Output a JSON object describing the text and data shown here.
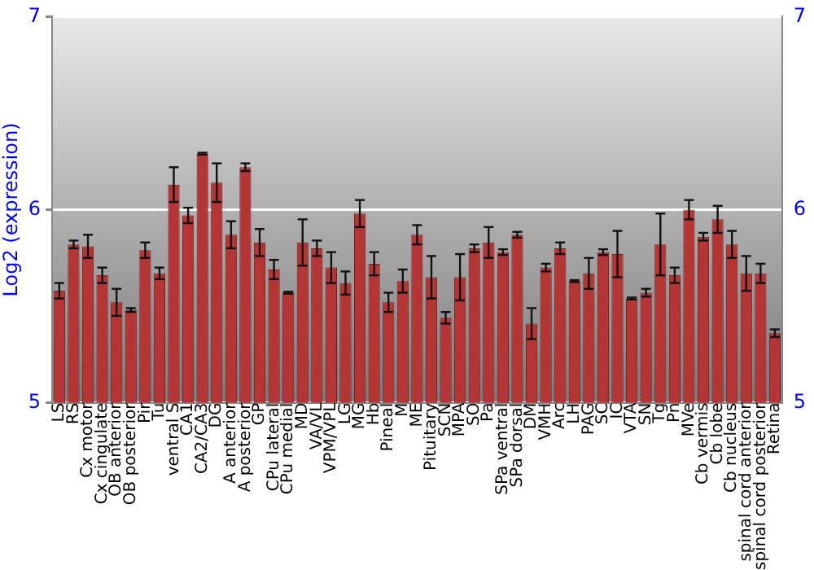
{
  "chart_data": {
    "type": "bar",
    "ylabel": "Log2 (expression)",
    "categories": [
      "LS",
      "RS",
      "Cx motor",
      "Cx cingulate",
      "OB anterior",
      "OB posterior",
      "Pir",
      "Tu",
      "ventral S",
      "CA1",
      "CA2/CA3",
      "DG",
      "A anterior",
      "A posterior",
      "GP",
      "CPu lateral",
      "CPu medial",
      "MD",
      "VA/VL",
      "VPM/VPL",
      "LG",
      "MG",
      "Hb",
      "Pineal",
      "M",
      "ME",
      "Pituitary",
      "SCN",
      "MPA",
      "SO",
      "Pa",
      "SPa ventral",
      "SPa dorsal",
      "DM",
      "VMH",
      "Arc",
      "LH",
      "PAG",
      "SC",
      "IC",
      "VTA",
      "SN",
      "Tg",
      "Pn",
      "MVe",
      "Cb vermis",
      "Cb lobe",
      "Cb nucleus",
      "spinal cord anterior",
      "spinal cord posterior",
      "Retina"
    ],
    "values": [
      5.58,
      5.82,
      5.81,
      5.66,
      5.52,
      5.48,
      5.79,
      5.67,
      6.13,
      5.97,
      6.29,
      6.14,
      5.87,
      6.22,
      5.83,
      5.69,
      5.57,
      5.83,
      5.8,
      5.7,
      5.62,
      5.98,
      5.72,
      5.52,
      5.63,
      5.87,
      5.65,
      5.44,
      5.65,
      5.8,
      5.83,
      5.78,
      5.87,
      5.41,
      5.7,
      5.8,
      5.63,
      5.67,
      5.78,
      5.77,
      5.54,
      5.57,
      5.82,
      5.66,
      6.0,
      5.86,
      5.95,
      5.82,
      5.67,
      5.67,
      5.36
    ],
    "errors": [
      0.04,
      0.02,
      0.06,
      0.04,
      0.07,
      0.01,
      0.04,
      0.03,
      0.09,
      0.04,
      0.005,
      0.1,
      0.07,
      0.02,
      0.07,
      0.05,
      0.005,
      0.12,
      0.04,
      0.08,
      0.06,
      0.07,
      0.06,
      0.05,
      0.06,
      0.05,
      0.11,
      0.03,
      0.12,
      0.02,
      0.08,
      0.015,
      0.015,
      0.08,
      0.02,
      0.03,
      0.005,
      0.08,
      0.015,
      0.12,
      0.005,
      0.02,
      0.16,
      0.04,
      0.05,
      0.02,
      0.07,
      0.07,
      0.09,
      0.05,
      0.02
    ],
    "color": "#b53434",
    "ylim": [
      5,
      7
    ],
    "yticks": [
      5,
      6,
      7
    ],
    "y2lim": [
      5,
      7
    ],
    "y2ticks": [
      5,
      6,
      7
    ],
    "grid": "y",
    "legend": false
  }
}
